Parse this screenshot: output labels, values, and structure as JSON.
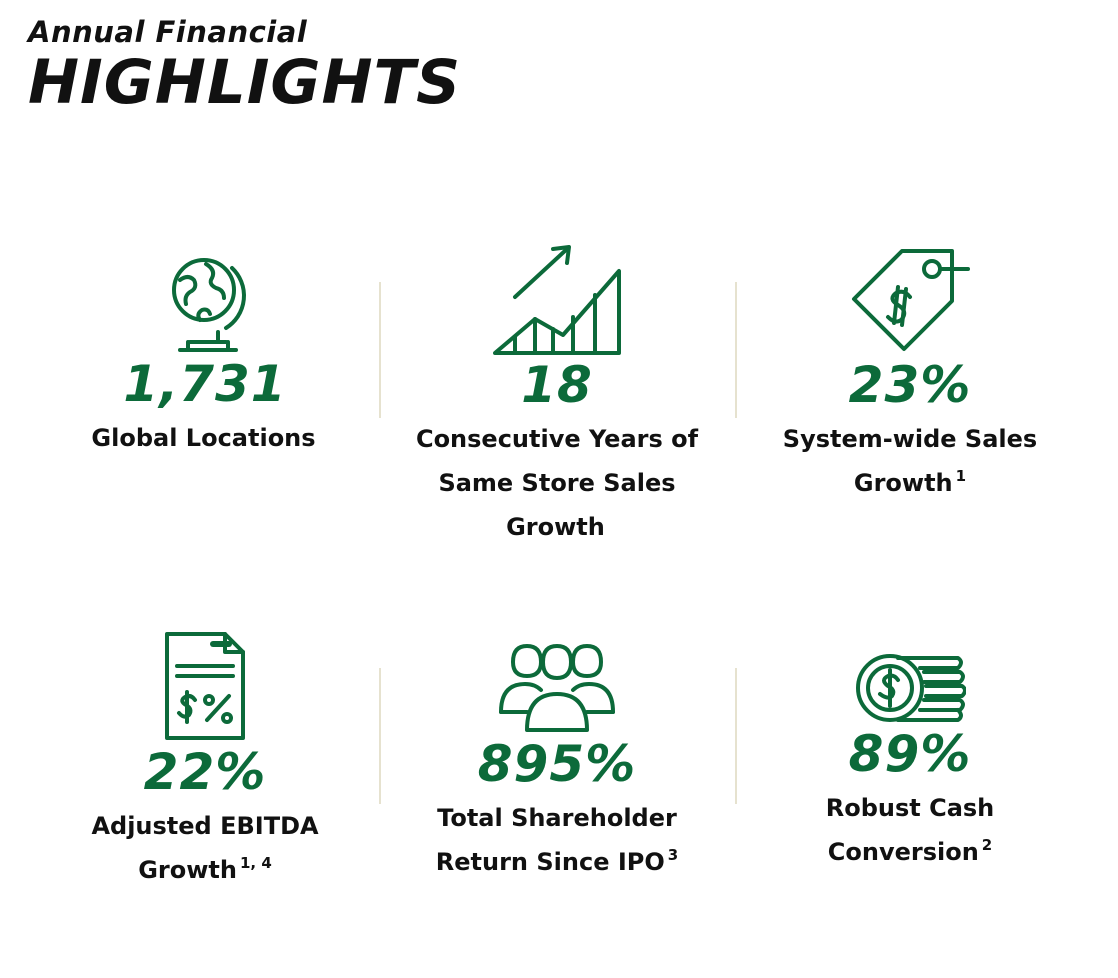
{
  "header": {
    "subtitle": "Annual Financial",
    "title": "HIGHLIGHTS"
  },
  "accent_color": "#0c6a3a",
  "stats": [
    {
      "icon": "globe-icon",
      "value": "1,731",
      "label": "Global Locations",
      "sup": ""
    },
    {
      "icon": "growth-chart-icon",
      "value": "18",
      "label": "Consecutive Years of Same Store Sales Growth",
      "sup": ""
    },
    {
      "icon": "price-tag-icon",
      "value": "23%",
      "label": "System-wide Sales Growth",
      "sup": "1"
    },
    {
      "icon": "document-dollar-percent-icon",
      "value": "22%",
      "label": "Adjusted EBITDA Growth",
      "sup": "1, 4"
    },
    {
      "icon": "people-group-icon",
      "value": "895%",
      "label": "Total Shareholder Return Since IPO",
      "sup": "3"
    },
    {
      "icon": "coins-icon",
      "value": "89%",
      "label": "Robust Cash Conversion",
      "sup": "2"
    }
  ]
}
